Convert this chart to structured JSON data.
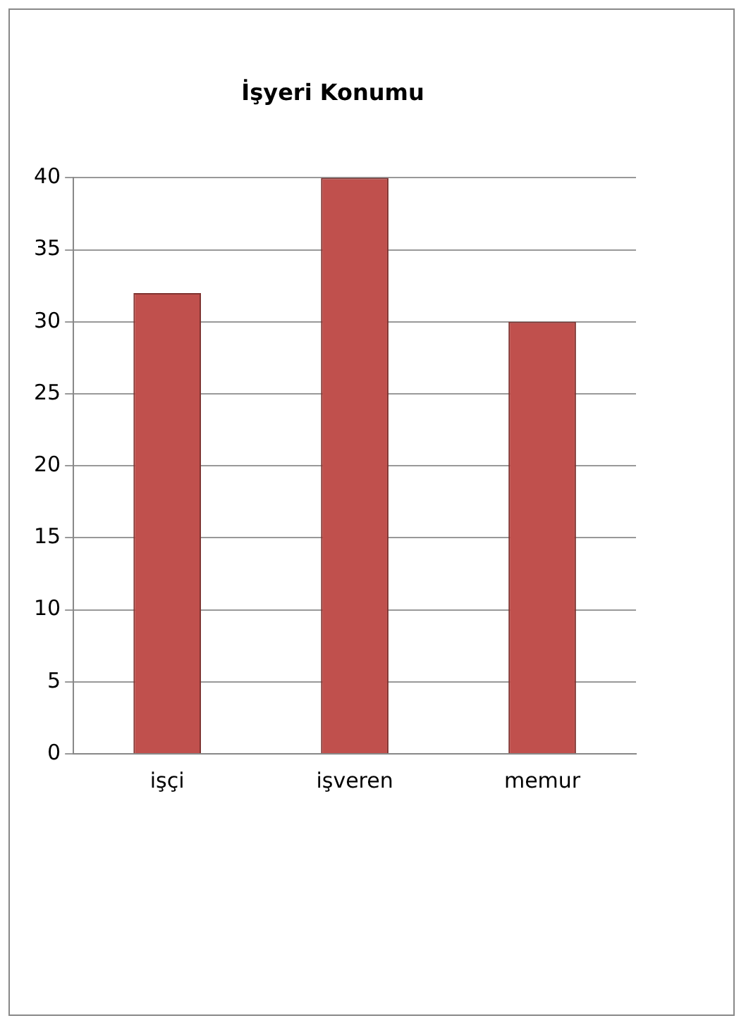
{
  "chart_data": {
    "type": "bar",
    "title": "İşyeri Konumu",
    "categories": [
      "işçi",
      "işveren",
      "memur"
    ],
    "values": [
      32,
      40,
      30
    ],
    "color": "#c0504d",
    "ylim": [
      0,
      40
    ],
    "yticks": [
      0,
      5,
      10,
      15,
      20,
      25,
      30,
      35,
      40
    ],
    "grid": "y",
    "legend": false
  }
}
